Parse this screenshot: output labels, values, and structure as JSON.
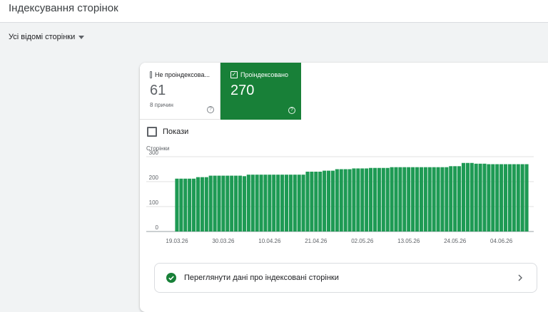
{
  "header": {
    "title": "Індексування сторінок"
  },
  "filter": {
    "label": "Усі відомі сторінки"
  },
  "cards": [
    {
      "label": "Не проіндексова...",
      "value": "61",
      "note": "8 причин"
    },
    {
      "label": "Проіндексовано",
      "value": "270"
    }
  ],
  "impressions": {
    "label": "Покази"
  },
  "chart_data": {
    "type": "bar",
    "y_label": "Сторінки",
    "color": "#1e9a54",
    "grid": true,
    "ylim": [
      0,
      300
    ],
    "yticks": [
      0,
      100,
      200,
      300
    ],
    "categories": [
      "19.03.26",
      null,
      null,
      null,
      null,
      null,
      null,
      null,
      null,
      null,
      null,
      "30.03.26",
      null,
      null,
      null,
      null,
      null,
      null,
      null,
      null,
      null,
      null,
      "10.04.26",
      null,
      null,
      null,
      null,
      null,
      null,
      null,
      null,
      null,
      null,
      "21.04.26",
      null,
      null,
      null,
      null,
      null,
      null,
      null,
      null,
      null,
      null,
      "02.05.26",
      null,
      null,
      null,
      null,
      null,
      null,
      null,
      null,
      null,
      null,
      "13.05.26",
      null,
      null,
      null,
      null,
      null,
      null,
      null,
      null,
      null,
      null,
      "24.05.26",
      null,
      null,
      null,
      null,
      null,
      null,
      null,
      null,
      null,
      null,
      "04.06.26",
      null,
      null,
      null,
      null,
      null,
      null
    ],
    "values": [
      212,
      212,
      212,
      212,
      212,
      218,
      218,
      218,
      224,
      224,
      224,
      224,
      224,
      224,
      224,
      224,
      222,
      228,
      228,
      228,
      228,
      228,
      228,
      228,
      228,
      228,
      228,
      228,
      228,
      228,
      228,
      240,
      240,
      240,
      240,
      244,
      244,
      244,
      250,
      250,
      250,
      250,
      253,
      253,
      253,
      253,
      255,
      255,
      255,
      255,
      255,
      258,
      258,
      258,
      258,
      258,
      258,
      258,
      258,
      258,
      258,
      258,
      258,
      258,
      258,
      262,
      262,
      262,
      275,
      275,
      275,
      272,
      272,
      272,
      270,
      270,
      270,
      270,
      270,
      270,
      270,
      270,
      270,
      270
    ]
  },
  "link": {
    "label": "Переглянути дані про індексовані сторінки"
  }
}
